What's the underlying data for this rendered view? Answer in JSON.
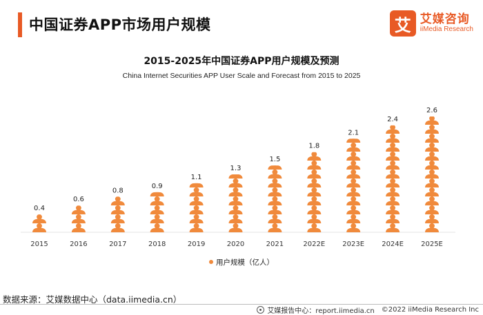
{
  "header": {
    "title": "中国证券APP市场用户规模",
    "logo_mark": "艾",
    "logo_cn": "艾媒咨询",
    "logo_en": "iiMedia Research"
  },
  "chart_data": {
    "type": "bar",
    "title": "2015-2025年中国证券APP用户规模及预测",
    "subtitle": "China Internet Securities APP User Scale and Forecast from 2015 to 2025",
    "categories": [
      "2015",
      "2016",
      "2017",
      "2018",
      "2019",
      "2020",
      "2021",
      "2022E",
      "2023E",
      "2024E",
      "2025E"
    ],
    "series": [
      {
        "name": "用户规模（亿人）",
        "values": [
          0.4,
          0.6,
          0.8,
          0.9,
          1.1,
          1.3,
          1.5,
          1.8,
          2.1,
          2.4,
          2.6
        ]
      }
    ],
    "data_labels": [
      "0.4",
      "0.6",
      "0.8",
      "0.9",
      "1.1",
      "1.3",
      "1.5",
      "1.8",
      "2.1",
      "2.4",
      "2.6"
    ],
    "ylim": [
      0,
      2.6
    ],
    "grid": false,
    "legend_position": "bottom",
    "color": "#f08a3c",
    "icon": "person-icon"
  },
  "footer": {
    "source": "数据来源：艾媒数据中心（data.iimedia.cn）",
    "report_site": "艾媒报告中心：report.iimedia.cn",
    "copyright": "©2022  iiMedia Research  Inc"
  }
}
